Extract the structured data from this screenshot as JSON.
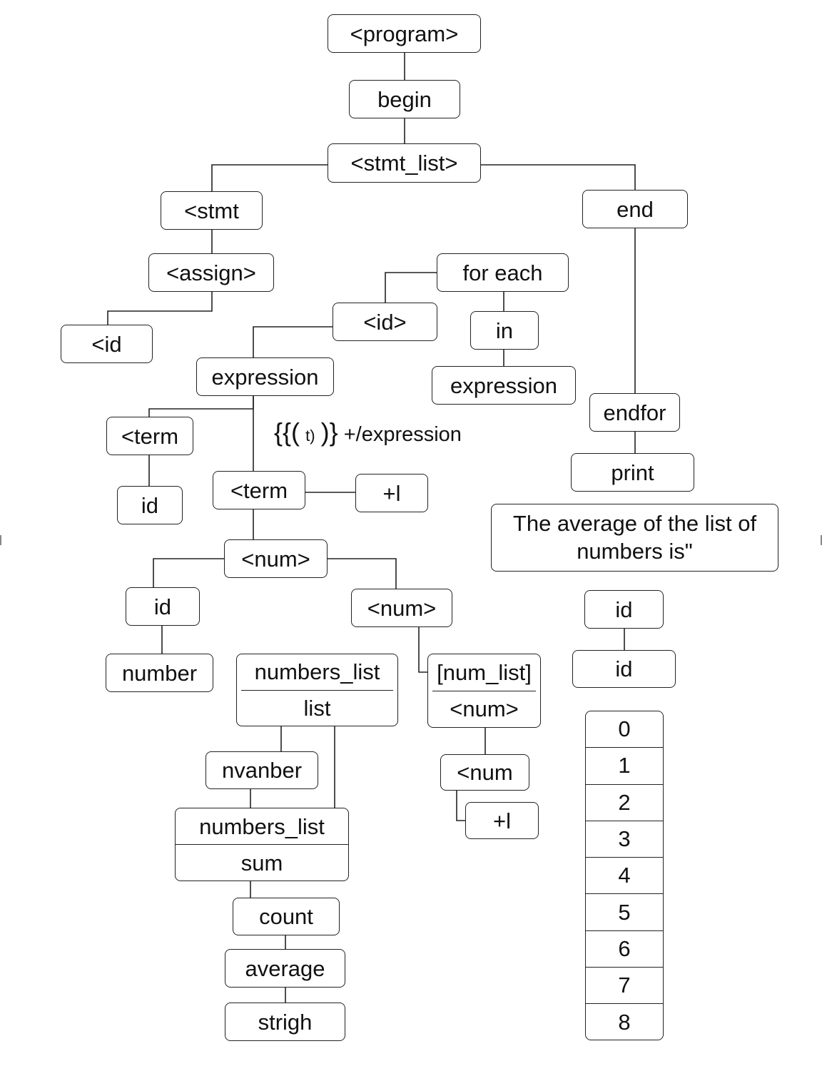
{
  "nodes": {
    "program": "<program>",
    "begin": "begin",
    "stmt_list": "<stmt_list>",
    "stmt": "<stmt",
    "end": "end",
    "assign": "<assign>",
    "id_left": "<id",
    "for_each": "for each",
    "id_tag": "<id>",
    "in": "in",
    "expression_left": "expression",
    "expression_right": "expression",
    "term_left": "<term",
    "id_under_term": "id",
    "term_center": "<term",
    "plus_l_center": "+l",
    "num_main": "<num>",
    "id_under_num": "id",
    "num_right": "<num>",
    "number": "number",
    "numbers_list_top": "numbers_list",
    "list": "list",
    "num_list_top": "[num_list]",
    "num_list_bottom": "<num>",
    "nvanber": "nvanber",
    "num_lower": "<num",
    "plus_l_lower": "+l",
    "numbers_list_mid": "numbers_list",
    "sum": "sum",
    "count": "count",
    "average": "average",
    "strigh": "strigh",
    "endfor": "endfor",
    "print": "print",
    "average_message": "The average of the list of numbers is\"",
    "id_right_1": "id",
    "id_right_2": "id"
  },
  "annotation": {
    "open_braces": "{{(",
    "inner": "t)",
    "close_braces": ")}",
    "tail": "+/expression"
  },
  "index_stack": [
    "0",
    "1",
    "2",
    "3",
    "4",
    "5",
    "6",
    "7",
    "8"
  ]
}
